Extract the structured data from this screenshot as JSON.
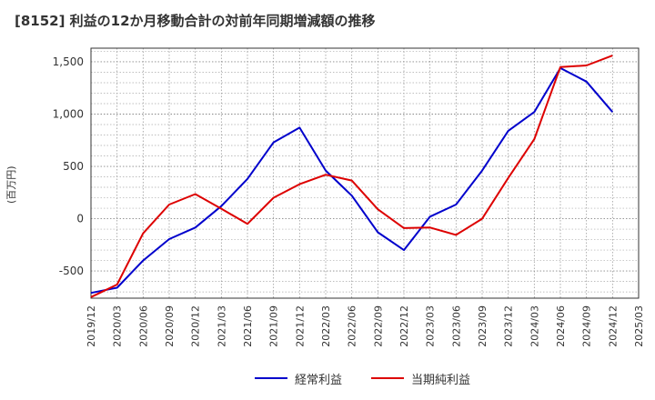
{
  "chart_data": {
    "type": "line",
    "title": "[8152]  利益の12か月移動合計の対前年同期増減額の推移",
    "xlabel": "",
    "ylabel": "(百万円)",
    "ylim": [
      -760,
      1630
    ],
    "yticks": [
      -500,
      0,
      500,
      1000,
      1500
    ],
    "ytick_labels": [
      "-500",
      "0",
      "500",
      "1,000",
      "1,500"
    ],
    "grid": true,
    "legend_position": "bottom",
    "categories": [
      "2019/12",
      "2020/03",
      "2020/06",
      "2020/09",
      "2020/12",
      "2021/03",
      "2021/06",
      "2021/09",
      "2021/12",
      "2022/03",
      "2022/06",
      "2022/09",
      "2022/12",
      "2023/03",
      "2023/06",
      "2023/09",
      "2023/12",
      "2024/03",
      "2024/06",
      "2024/09",
      "2024/12",
      "2025/03"
    ],
    "series": [
      {
        "name": "経常利益",
        "color": "#0000cc",
        "values": [
          -710,
          -660,
          -400,
          -195,
          -85,
          120,
          380,
          730,
          870,
          460,
          220,
          -130,
          -300,
          20,
          135,
          460,
          840,
          1020,
          1440,
          1310,
          1020,
          null
        ]
      },
      {
        "name": "当期純利益",
        "color": "#dd0000",
        "values": [
          -750,
          -630,
          -140,
          135,
          235,
          95,
          -50,
          200,
          330,
          420,
          365,
          90,
          -90,
          -85,
          -155,
          0,
          390,
          760,
          1450,
          1465,
          1560,
          null
        ]
      }
    ]
  }
}
